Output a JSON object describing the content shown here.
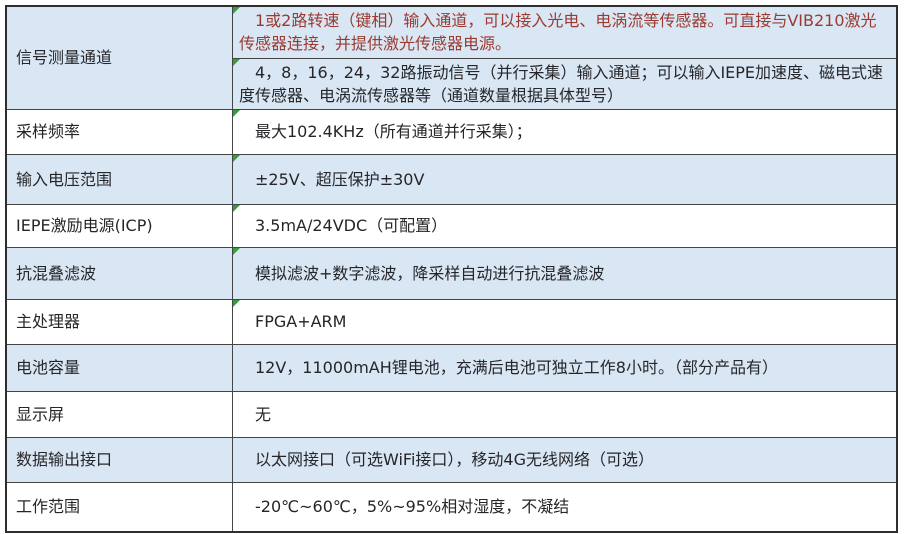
{
  "table": {
    "colors": {
      "row_blue": "#d9e6f3",
      "row_white": "#ffffff",
      "border": "#454545",
      "border_dark": "#2e2e2e",
      "text": "#26262a",
      "red_text": "#9b3a31",
      "green_flag": "#33a037"
    },
    "rows": [
      {
        "label": "信号测量通道",
        "shade": "blue",
        "cells": [
          {
            "text": "1或2路转速（键相）输入通道，可以接入光电、电涡流等传感器。可直接与VIB210激光传感器连接，并提供激光传感器电源。",
            "red": true,
            "flag": true
          },
          {
            "text": "4，8，16，24，32路振动信号（并行采集）输入通道；可以输入IEPE加速度、磁电式速度传感器、电涡流传感器等（通道数量根据具体型号）",
            "red": false,
            "flag": true
          }
        ]
      },
      {
        "label": "采样频率",
        "shade": "white",
        "cells": [
          {
            "text": "最大102.4KHz（所有通道并行采集）；",
            "red": false,
            "flag": true
          }
        ]
      },
      {
        "label": "输入电压范围",
        "shade": "blue",
        "cells": [
          {
            "text": "±25V、超压保护±30V",
            "red": false,
            "flag": true
          }
        ]
      },
      {
        "label": "IEPE激励电源(ICP)",
        "shade": "white",
        "cells": [
          {
            "text": "3.5mA/24VDC（可配置）",
            "red": false,
            "flag": true
          }
        ]
      },
      {
        "label": "抗混叠滤波",
        "shade": "blue",
        "cells": [
          {
            "text": "模拟滤波+数字滤波，降采样自动进行抗混叠滤波",
            "red": false,
            "flag": true
          }
        ]
      },
      {
        "label": "主处理器",
        "shade": "white",
        "cells": [
          {
            "text": "FPGA+ARM",
            "red": false,
            "flag": true
          }
        ]
      },
      {
        "label": "电池容量",
        "shade": "blue",
        "cells": [
          {
            "text": "12V，11000mAH锂电池，充满后电池可独立工作8小时。（部分产品有）",
            "red": false,
            "flag": false
          }
        ]
      },
      {
        "label": "显示屏",
        "shade": "white",
        "cells": [
          {
            "text": "无",
            "red": false,
            "flag": false
          }
        ]
      },
      {
        "label": "数据输出接口",
        "shade": "blue",
        "cells": [
          {
            "text": "以太网接口（可选WiFi接口），移动4G无线网络（可选）",
            "red": false,
            "flag": false
          }
        ]
      },
      {
        "label": "工作范围",
        "shade": "white",
        "cells": [
          {
            "text": "-20℃~60℃，5%~95%相对湿度，不凝结",
            "red": false,
            "flag": false
          }
        ]
      }
    ]
  }
}
